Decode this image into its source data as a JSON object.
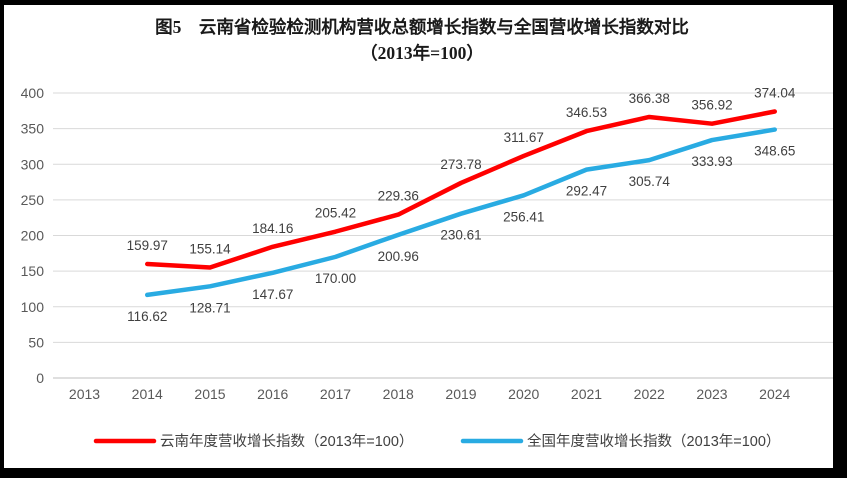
{
  "figure": {
    "title_line1": "图5　云南省检验检测机构营收总额增长指数与全国营收增长指数对比",
    "title_line2": "（2013年=100）",
    "frame_color": "#000000",
    "panel_color": "#ffffff"
  },
  "chart_data": {
    "type": "line",
    "categories": [
      "2013",
      "2014",
      "2015",
      "2016",
      "2017",
      "2018",
      "2019",
      "2020",
      "2021",
      "2022",
      "2023",
      "2024"
    ],
    "series": [
      {
        "name": "云南年度营收增长指数（2013年=100）",
        "color": "#FF0000",
        "label_position": "above",
        "values": [
          null,
          159.97,
          155.14,
          184.16,
          205.42,
          229.36,
          273.78,
          311.67,
          346.53,
          366.38,
          356.92,
          374.04
        ]
      },
      {
        "name": "全国年度营收增长指数（2013年=100）",
        "color": "#29ABE2",
        "label_position": "below",
        "values": [
          null,
          116.62,
          128.71,
          147.67,
          170.0,
          200.96,
          230.61,
          256.41,
          292.47,
          305.74,
          333.93,
          348.65
        ]
      }
    ],
    "title": "图5　云南省检验检测机构营收总额增长指数与全国营收增长指数对比（2013年=100）",
    "xlabel": "",
    "ylabel": "",
    "ylim": [
      0,
      400
    ],
    "yticks": [
      0,
      50,
      100,
      150,
      200,
      250,
      300,
      350,
      400
    ],
    "grid": true,
    "legend_position": "bottom",
    "value_decimals": 2,
    "grid_color": "#D9D9D9",
    "baseline_color": "#BFBFBF",
    "axis_text_color": "#595959",
    "value_label_color": "#404040"
  }
}
